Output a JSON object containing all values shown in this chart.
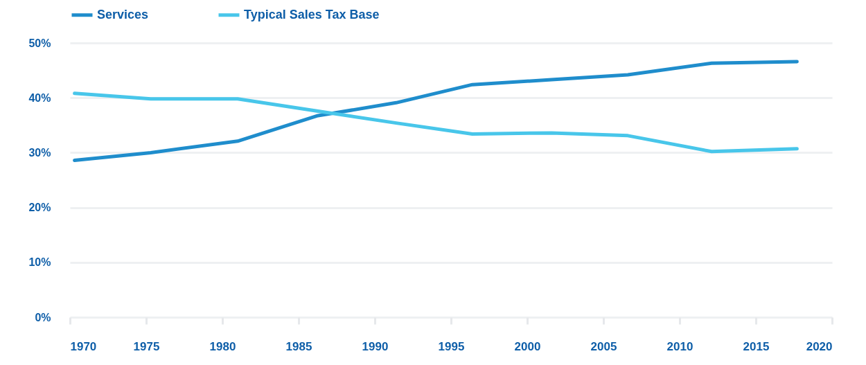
{
  "chart_data": {
    "type": "line",
    "legend": "top",
    "grid": "y",
    "line_style": "solid",
    "marker": "none",
    "xlim": [
      1970,
      2020
    ],
    "xticks": [
      1970,
      1975,
      1980,
      1985,
      1990,
      1995,
      2000,
      2005,
      2010,
      2015,
      2020
    ],
    "ylim": [
      0,
      50
    ],
    "yticks": [
      {
        "value": 0,
        "label": "0%"
      },
      {
        "value": 10,
        "label": "10%"
      },
      {
        "value": 20,
        "label": "20%"
      },
      {
        "value": 30,
        "label": "30%"
      },
      {
        "value": 40,
        "label": "40%"
      },
      {
        "value": 50,
        "label": "50%"
      }
    ],
    "x": [
      1970.3,
      1975.3,
      1981,
      1986.2,
      1991.4,
      1996.4,
      2001.6,
      2006.6,
      2012.1,
      2017.7
    ],
    "series": [
      {
        "name": "Services",
        "color": "#1f8dcc",
        "values": [
          28.6,
          30.0,
          32.1,
          36.7,
          39.1,
          42.4,
          43.3,
          44.2,
          46.3,
          46.6
        ]
      },
      {
        "name": "Typical Sales Tax Base",
        "color": "#48c6ea",
        "values": [
          40.8,
          39.8,
          39.8,
          37.6,
          35.4,
          33.4,
          33.6,
          33.1,
          30.2,
          30.7
        ]
      }
    ]
  }
}
